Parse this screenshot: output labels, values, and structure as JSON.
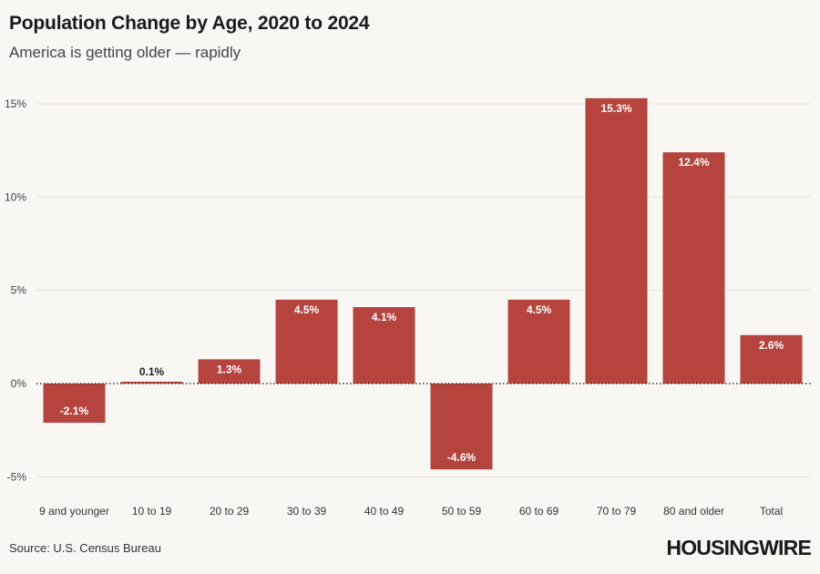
{
  "header": {
    "title": "Population Change by Age, 2020 to 2024",
    "subtitle": "America is getting older — rapidly"
  },
  "footer": {
    "source": "Source: U.S. Census Bureau",
    "logo": "HOUSINGWIRE"
  },
  "chart_data": {
    "type": "bar",
    "title": "Population Change by Age, 2020 to 2024",
    "subtitle": "America is getting older — rapidly",
    "xlabel": "",
    "ylabel": "",
    "categories": [
      "9 and younger",
      "10 to 19",
      "20 to 29",
      "30 to 39",
      "40 to 49",
      "50 to 59",
      "60 to 69",
      "70 to 79",
      "80 and older",
      "Total"
    ],
    "values": [
      -2.1,
      0.1,
      1.3,
      4.5,
      4.1,
      -4.6,
      4.5,
      15.3,
      12.4,
      2.6
    ],
    "data_labels": [
      "-2.1%",
      "0.1%",
      "1.3%",
      "4.5%",
      "4.1%",
      "-4.6%",
      "4.5%",
      "15.3%",
      "12.4%",
      "2.6%"
    ],
    "ylim": [
      -5.8,
      15.8
    ],
    "yticks": [
      -5,
      0,
      5,
      10,
      15
    ],
    "ytick_labels": [
      "-5%",
      "0%",
      "5%",
      "10%",
      "15%"
    ],
    "bar_color": "#b5443f",
    "grid": true
  }
}
